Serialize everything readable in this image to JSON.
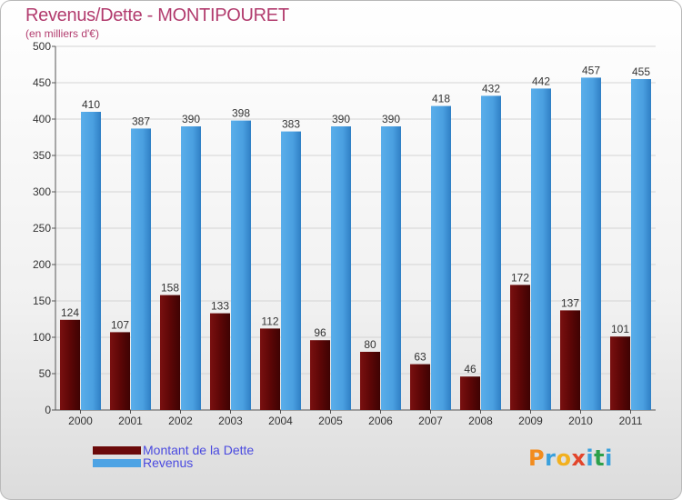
{
  "title": "Revenus/Dette - MONTIPOURET",
  "subtitle": "(en milliers d'€)",
  "chart_data": {
    "type": "bar",
    "categories": [
      "2000",
      "2001",
      "2002",
      "2003",
      "2004",
      "2005",
      "2006",
      "2007",
      "2008",
      "2009",
      "2010",
      "2011"
    ],
    "series": [
      {
        "name": "Montant de la Dette",
        "values": [
          124,
          107,
          158,
          133,
          112,
          96,
          80,
          63,
          46,
          172,
          137,
          101
        ],
        "color": "#6b0a0a"
      },
      {
        "name": "Revenus",
        "values": [
          410,
          387,
          390,
          398,
          383,
          390,
          390,
          418,
          432,
          442,
          457,
          455
        ],
        "color": "#4da3e4"
      }
    ],
    "ylim": [
      0,
      500
    ],
    "yticks": [
      0,
      50,
      100,
      150,
      200,
      250,
      300,
      350,
      400,
      450,
      500
    ],
    "grid": true,
    "legend": "bottom-left"
  },
  "legend": [
    {
      "label": "Montant de la Dette",
      "color": "#6b0a0a"
    },
    {
      "label": "Revenus",
      "color": "#4da3e4"
    }
  ],
  "logo": {
    "text": "Proxiti",
    "letters": [
      {
        "ch": "P",
        "color": "#f28c1e"
      },
      {
        "ch": "r",
        "color": "#3aa0dc"
      },
      {
        "ch": "o",
        "color": "#f2b01e"
      },
      {
        "ch": "x",
        "color": "#e2452b"
      },
      {
        "ch": "i",
        "color": "#3aa0dc"
      },
      {
        "ch": "t",
        "color": "#2ca04a"
      },
      {
        "ch": "i",
        "color": "#3aa0dc"
      }
    ]
  }
}
